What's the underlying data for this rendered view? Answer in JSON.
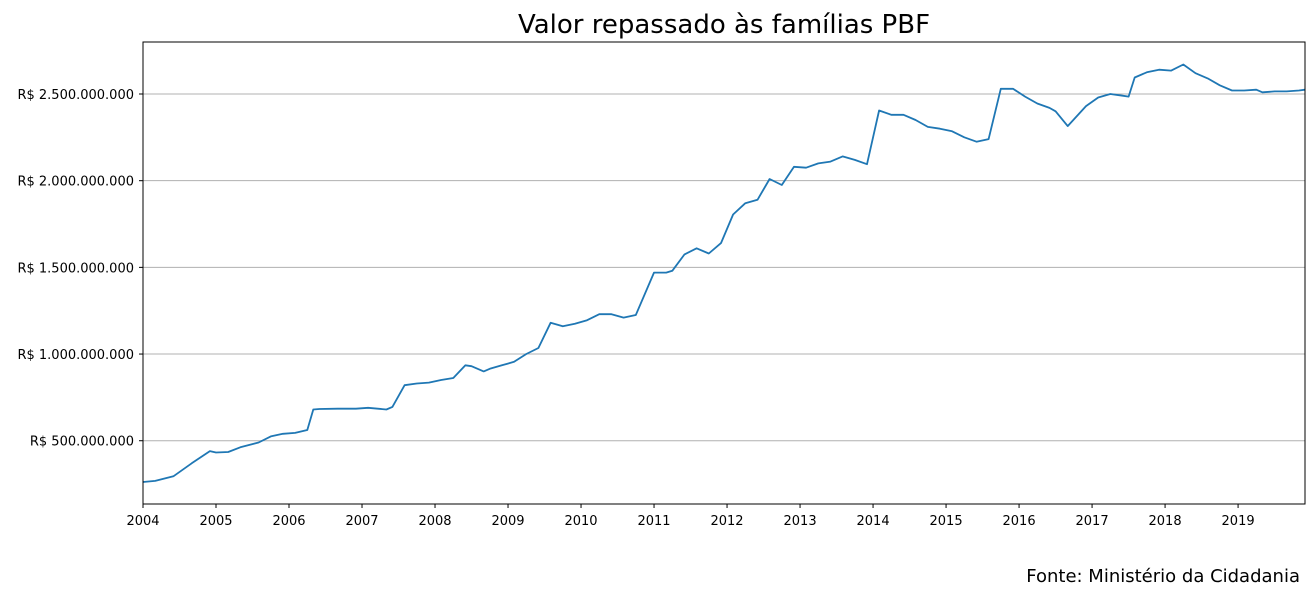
{
  "chart_data": {
    "type": "line",
    "title": "Valor repassado às famílias PBF",
    "xlabel": "",
    "ylabel": "",
    "x_tick_labels": [
      "2004",
      "2005",
      "2006",
      "2007",
      "2008",
      "2009",
      "2010",
      "2011",
      "2012",
      "2013",
      "2014",
      "2015",
      "2016",
      "2017",
      "2018",
      "2019"
    ],
    "y_ticks": [
      500000000,
      1000000000,
      1500000000,
      2000000000,
      2500000000
    ],
    "y_tick_labels": [
      "R$ 500.000.000",
      "R$ 1.000.000.000",
      "R$ 1.500.000.000",
      "R$ 2.000.000.000",
      "R$ 2.500.000.000"
    ],
    "ylim": [
      135000000,
      2800000000
    ],
    "xlim": [
      "2004-01",
      "2019-12"
    ],
    "grid": "horizontal",
    "line_color": "#1f77b4",
    "series": [
      {
        "x": [
          "2004-01",
          "2004-03",
          "2004-06",
          "2004-09",
          "2004-12",
          "2005-01",
          "2005-03",
          "2005-05",
          "2005-08",
          "2005-10",
          "2005-12",
          "2006-02",
          "2006-04",
          "2006-05",
          "2006-06",
          "2006-09",
          "2006-12",
          "2007-02",
          "2007-05",
          "2007-06",
          "2007-08",
          "2007-10",
          "2007-12",
          "2008-02",
          "2008-04",
          "2008-06",
          "2008-07",
          "2008-09",
          "2008-10",
          "2008-12",
          "2009-02",
          "2009-04",
          "2009-06",
          "2009-08",
          "2009-10",
          "2009-12",
          "2010-02",
          "2010-04",
          "2010-06",
          "2010-08",
          "2010-10",
          "2011-01",
          "2011-02",
          "2011-03",
          "2011-04",
          "2011-06",
          "2011-08",
          "2011-10",
          "2011-12",
          "2012-02",
          "2012-04",
          "2012-06",
          "2012-08",
          "2012-10",
          "2012-12",
          "2013-02",
          "2013-04",
          "2013-06",
          "2013-08",
          "2013-10",
          "2013-12",
          "2014-02",
          "2014-04",
          "2014-06",
          "2014-08",
          "2014-10",
          "2014-12",
          "2015-02",
          "2015-04",
          "2015-06",
          "2015-08",
          "2015-10",
          "2015-12",
          "2016-02",
          "2016-04",
          "2016-06",
          "2016-07",
          "2016-09",
          "2016-12",
          "2017-02",
          "2017-04",
          "2017-06",
          "2017-07",
          "2017-08",
          "2017-10",
          "2017-12",
          "2018-02",
          "2018-04",
          "2018-06",
          "2018-08",
          "2018-10",
          "2018-12",
          "2019-02",
          "2019-04",
          "2019-05",
          "2019-07",
          "2019-09",
          "2019-11",
          "2019-12"
        ],
        "values": [
          262000000,
          268000000,
          295000000,
          370000000,
          440000000,
          432000000,
          435000000,
          462000000,
          490000000,
          525000000,
          540000000,
          545000000,
          562000000,
          680000000,
          683000000,
          685000000,
          685000000,
          690000000,
          680000000,
          695000000,
          820000000,
          830000000,
          835000000,
          850000000,
          862000000,
          935000000,
          930000000,
          900000000,
          915000000,
          935000000,
          955000000,
          1000000000,
          1035000000,
          1180000000,
          1160000000,
          1175000000,
          1195000000,
          1230000000,
          1230000000,
          1210000000,
          1225000000,
          1470000000,
          1470000000,
          1470000000,
          1480000000,
          1575000000,
          1610000000,
          1580000000,
          1640000000,
          1805000000,
          1870000000,
          1890000000,
          2010000000,
          1975000000,
          2080000000,
          2075000000,
          2100000000,
          2110000000,
          2140000000,
          2120000000,
          2095000000,
          2405000000,
          2380000000,
          2380000000,
          2350000000,
          2310000000,
          2300000000,
          2285000000,
          2250000000,
          2225000000,
          2240000000,
          2530000000,
          2530000000,
          2485000000,
          2445000000,
          2420000000,
          2400000000,
          2315000000,
          2430000000,
          2480000000,
          2500000000,
          2490000000,
          2485000000,
          2595000000,
          2625000000,
          2640000000,
          2635000000,
          2670000000,
          2620000000,
          2590000000,
          2550000000,
          2520000000,
          2520000000,
          2525000000,
          2510000000,
          2515000000,
          2515000000,
          2520000000,
          2525000000
        ]
      }
    ]
  },
  "source": "Fonte: Ministério da Cidadania"
}
